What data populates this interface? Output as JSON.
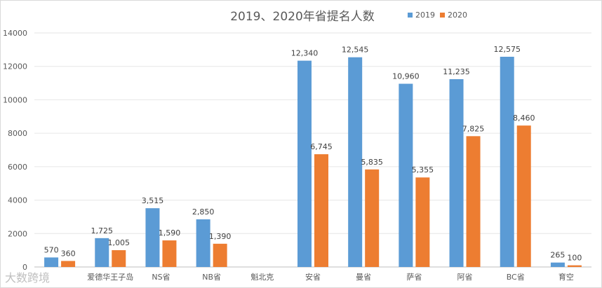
{
  "chart_data": {
    "type": "bar",
    "title": "2019、2020年省提名人数",
    "categories": [
      "",
      "爱德华王子岛",
      "NS省",
      "NB省",
      "魁北克",
      "安省",
      "曼省",
      "萨省",
      "阿省",
      "BC省",
      "育空"
    ],
    "series": [
      {
        "name": "2019",
        "color": "#5b9bd5",
        "values": [
          570,
          1725,
          3515,
          2850,
          null,
          12340,
          12545,
          10960,
          11235,
          12575,
          265
        ],
        "labels": [
          "570",
          "1,725",
          "3,515",
          "2,850",
          "",
          "12,340",
          "12,545",
          "10,960",
          "11,235",
          "12,575",
          "265"
        ]
      },
      {
        "name": "2020",
        "color": "#ed7d31",
        "values": [
          360,
          1005,
          1590,
          1390,
          null,
          6745,
          5835,
          5355,
          7825,
          8460,
          100
        ],
        "labels": [
          "360",
          "1,005",
          "1,590",
          "1,390",
          "",
          "6,745",
          "5,835",
          "5,355",
          "7,825",
          "8,460",
          "100"
        ]
      }
    ],
    "ylim": [
      0,
      14000
    ],
    "yticks": [
      "0",
      "2000",
      "4000",
      "6000",
      "8000",
      "10000",
      "12000",
      "14000"
    ],
    "grid": true,
    "legend": "top-right"
  },
  "watermark": "大数跨境"
}
